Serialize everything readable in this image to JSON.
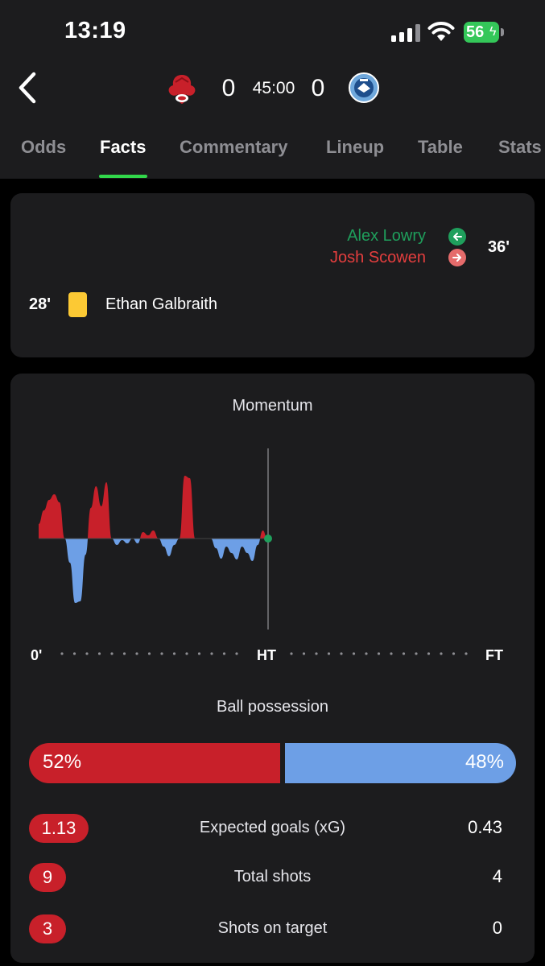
{
  "status_bar": {
    "time": "13:19",
    "battery_level": "56"
  },
  "match": {
    "home_score": "0",
    "away_score": "0",
    "clock": "45:00",
    "home_color": "#c8202a",
    "away_color": "#6d9fe6"
  },
  "tabs": [
    {
      "label": "Odds",
      "active": false
    },
    {
      "label": "Facts",
      "active": true
    },
    {
      "label": "Commentary",
      "active": false
    },
    {
      "label": "Lineup",
      "active": false
    },
    {
      "label": "Table",
      "active": false
    },
    {
      "label": "Stats",
      "active": false
    }
  ],
  "events": {
    "substitution": {
      "player_in": "Alex Lowry",
      "player_out": "Josh Scowen",
      "minute": "36'"
    },
    "yellow_card": {
      "minute": "28'",
      "player": "Ethan Galbraith"
    }
  },
  "momentum": {
    "title": "Momentum",
    "timeline_labels": {
      "start": "0'",
      "half": "HT",
      "end": "FT"
    },
    "chart_data": {
      "type": "area",
      "x": [
        1,
        2,
        3,
        4,
        5,
        6,
        7,
        8,
        9,
        10,
        11,
        12,
        13,
        14,
        15,
        16,
        17,
        18,
        19,
        20,
        21,
        22,
        23,
        24,
        25,
        26,
        27,
        28,
        29,
        30,
        31,
        32,
        33,
        34,
        35,
        36,
        37,
        38,
        39,
        40,
        41,
        42,
        43,
        44,
        45
      ],
      "values": [
        18,
        35,
        48,
        55,
        45,
        0,
        -30,
        -80,
        -78,
        -20,
        38,
        65,
        40,
        70,
        0,
        -8,
        -2,
        -6,
        0,
        -6,
        8,
        4,
        10,
        0,
        -10,
        -22,
        -8,
        0,
        78,
        75,
        0,
        0,
        0,
        0,
        -12,
        -25,
        -10,
        -18,
        -26,
        -10,
        -18,
        -28,
        -8,
        10,
        -5
      ],
      "ylim": [
        -100,
        100
      ],
      "home_color": "#c8202a",
      "away_color": "#6d9fe6"
    }
  },
  "possession": {
    "title": "Ball possession",
    "home": "52%",
    "away": "48%",
    "home_value": 52,
    "away_value": 48
  },
  "stat_rows": [
    {
      "label": "Expected goals (xG)",
      "home": "1.13",
      "away": "0.43"
    },
    {
      "label": "Total shots",
      "home": "9",
      "away": "4"
    },
    {
      "label": "Shots on target",
      "home": "3",
      "away": "0"
    }
  ]
}
